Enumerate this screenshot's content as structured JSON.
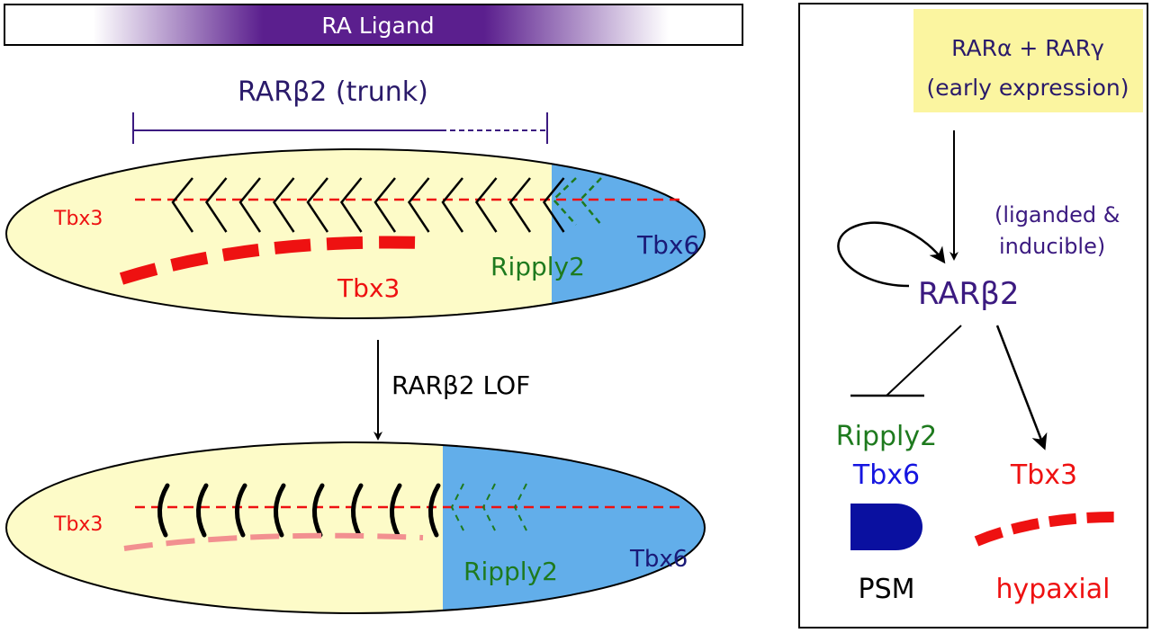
{
  "ligand_bar": {
    "label": "RA Ligand"
  },
  "trunk": {
    "label": "RARβ2 (trunk)"
  },
  "embryo_wt": {
    "tbx3_axial": "Tbx3",
    "tbx3_hypaxial": "Tbx3",
    "ripply2": "Ripply2",
    "tbx6": "Tbx6"
  },
  "lof": {
    "label": "RARβ2 LOF"
  },
  "embryo_lof": {
    "tbx3_axial": "Tbx3",
    "ripply2": "Ripply2",
    "tbx6": "Tbx6"
  },
  "network": {
    "early_line1": "RARα + RARγ",
    "early_line2": "(early expression)",
    "liganded_line1": "(liganded &",
    "liganded_line2": "inducible)",
    "rarb2": "RARβ2",
    "ripply2": "Ripply2",
    "tbx6": "Tbx6",
    "psm": "PSM",
    "tbx3": "Tbx3",
    "hypaxial": "hypaxial"
  },
  "colors": {
    "yellow": "#fdfbc8",
    "blue": "#62aeea",
    "red": "#ee1111",
    "green": "#1e7a1e",
    "navy": "#1a1a78",
    "purple": "#3b1a80",
    "ligand": "#5b1f8e"
  }
}
